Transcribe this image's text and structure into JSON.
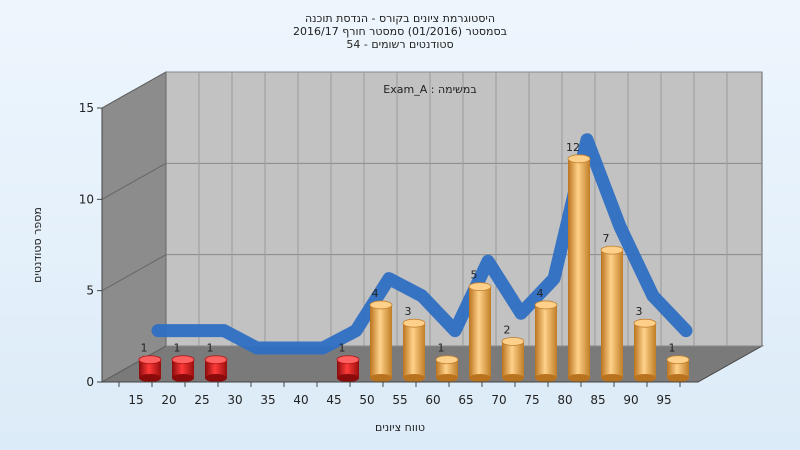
{
  "chart_data": {
    "type": "bar",
    "title": [
      "היסטוגרמת ציונים בקורס - הנדסת תוכנה",
      "בסמסטר (01/2016) סמסטר חורף 2016/17",
      "סטודנטים רשומים - 54"
    ],
    "legend_text": "Exam_A : במשימה",
    "xlabel": "טווח ציונים",
    "ylabel": "מספר סטודנטים",
    "ylim": [
      0,
      15
    ],
    "yticks": [
      0,
      5,
      10,
      15
    ],
    "categories": [
      "15",
      "20",
      "25",
      "30",
      "35",
      "40",
      "45",
      "50",
      "55",
      "60",
      "65",
      "70",
      "75",
      "80",
      "85",
      "90",
      "95"
    ],
    "values": [
      1,
      1,
      1,
      0,
      0,
      0,
      1,
      4,
      3,
      1,
      5,
      2,
      4,
      12,
      7,
      3,
      1
    ],
    "colors": {
      "fail": "#e01818",
      "pass": "#e8a84a",
      "curve": "#2f6fc3",
      "wall": "#8c8c8c",
      "back": "#c0c0c0",
      "floor": "#7a7a7a"
    },
    "fail_threshold": 50,
    "grid": true,
    "three_d": true
  }
}
